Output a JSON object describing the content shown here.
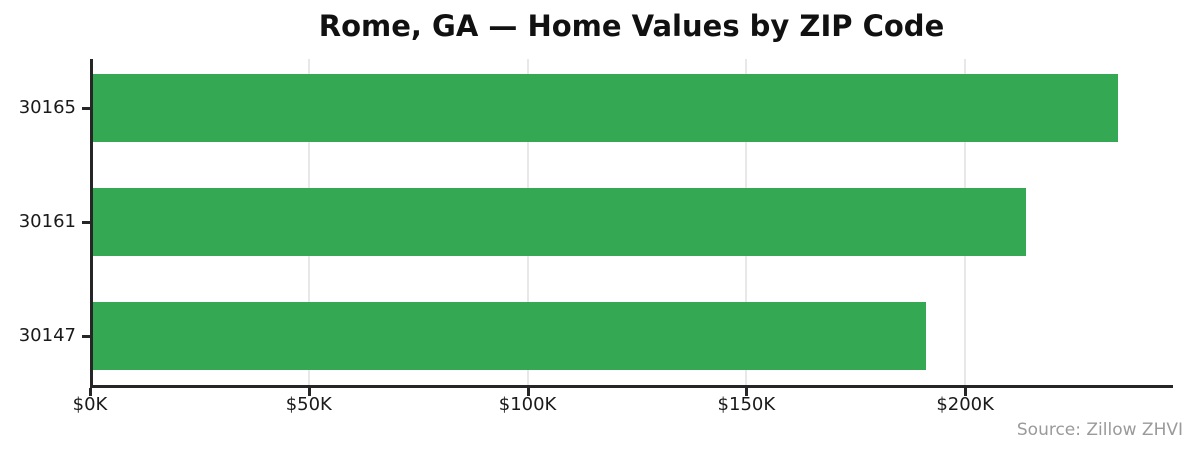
{
  "title": "Rome, GA — Home Values by ZIP Code",
  "source_note": "Source: Zillow ZHVI",
  "colors": {
    "bar": "#34a853",
    "spine": "#262626",
    "grid": "#e8e8e8",
    "tick_text": "#1a1a1a",
    "title_text": "#111111",
    "source_text": "#9a9a9a",
    "background": "#ffffff"
  },
  "chart_data": {
    "type": "bar",
    "orientation": "horizontal",
    "title": "Rome, GA — Home Values by ZIP Code",
    "categories": [
      "30165",
      "30161",
      "30147"
    ],
    "values": [
      235000,
      214000,
      191000
    ],
    "value_unit": "USD",
    "xlabel": "",
    "ylabel": "",
    "xlim": [
      0,
      247500
    ],
    "xticks": [
      0,
      50000,
      100000,
      150000,
      200000
    ],
    "xtick_labels": [
      "$0K",
      "$50K",
      "$100K",
      "$150K",
      "$200K"
    ],
    "grid": true,
    "grid_axis": "x",
    "legend": false,
    "bar_color": "#34a853",
    "annotation": "Source: Zillow ZHVI"
  }
}
